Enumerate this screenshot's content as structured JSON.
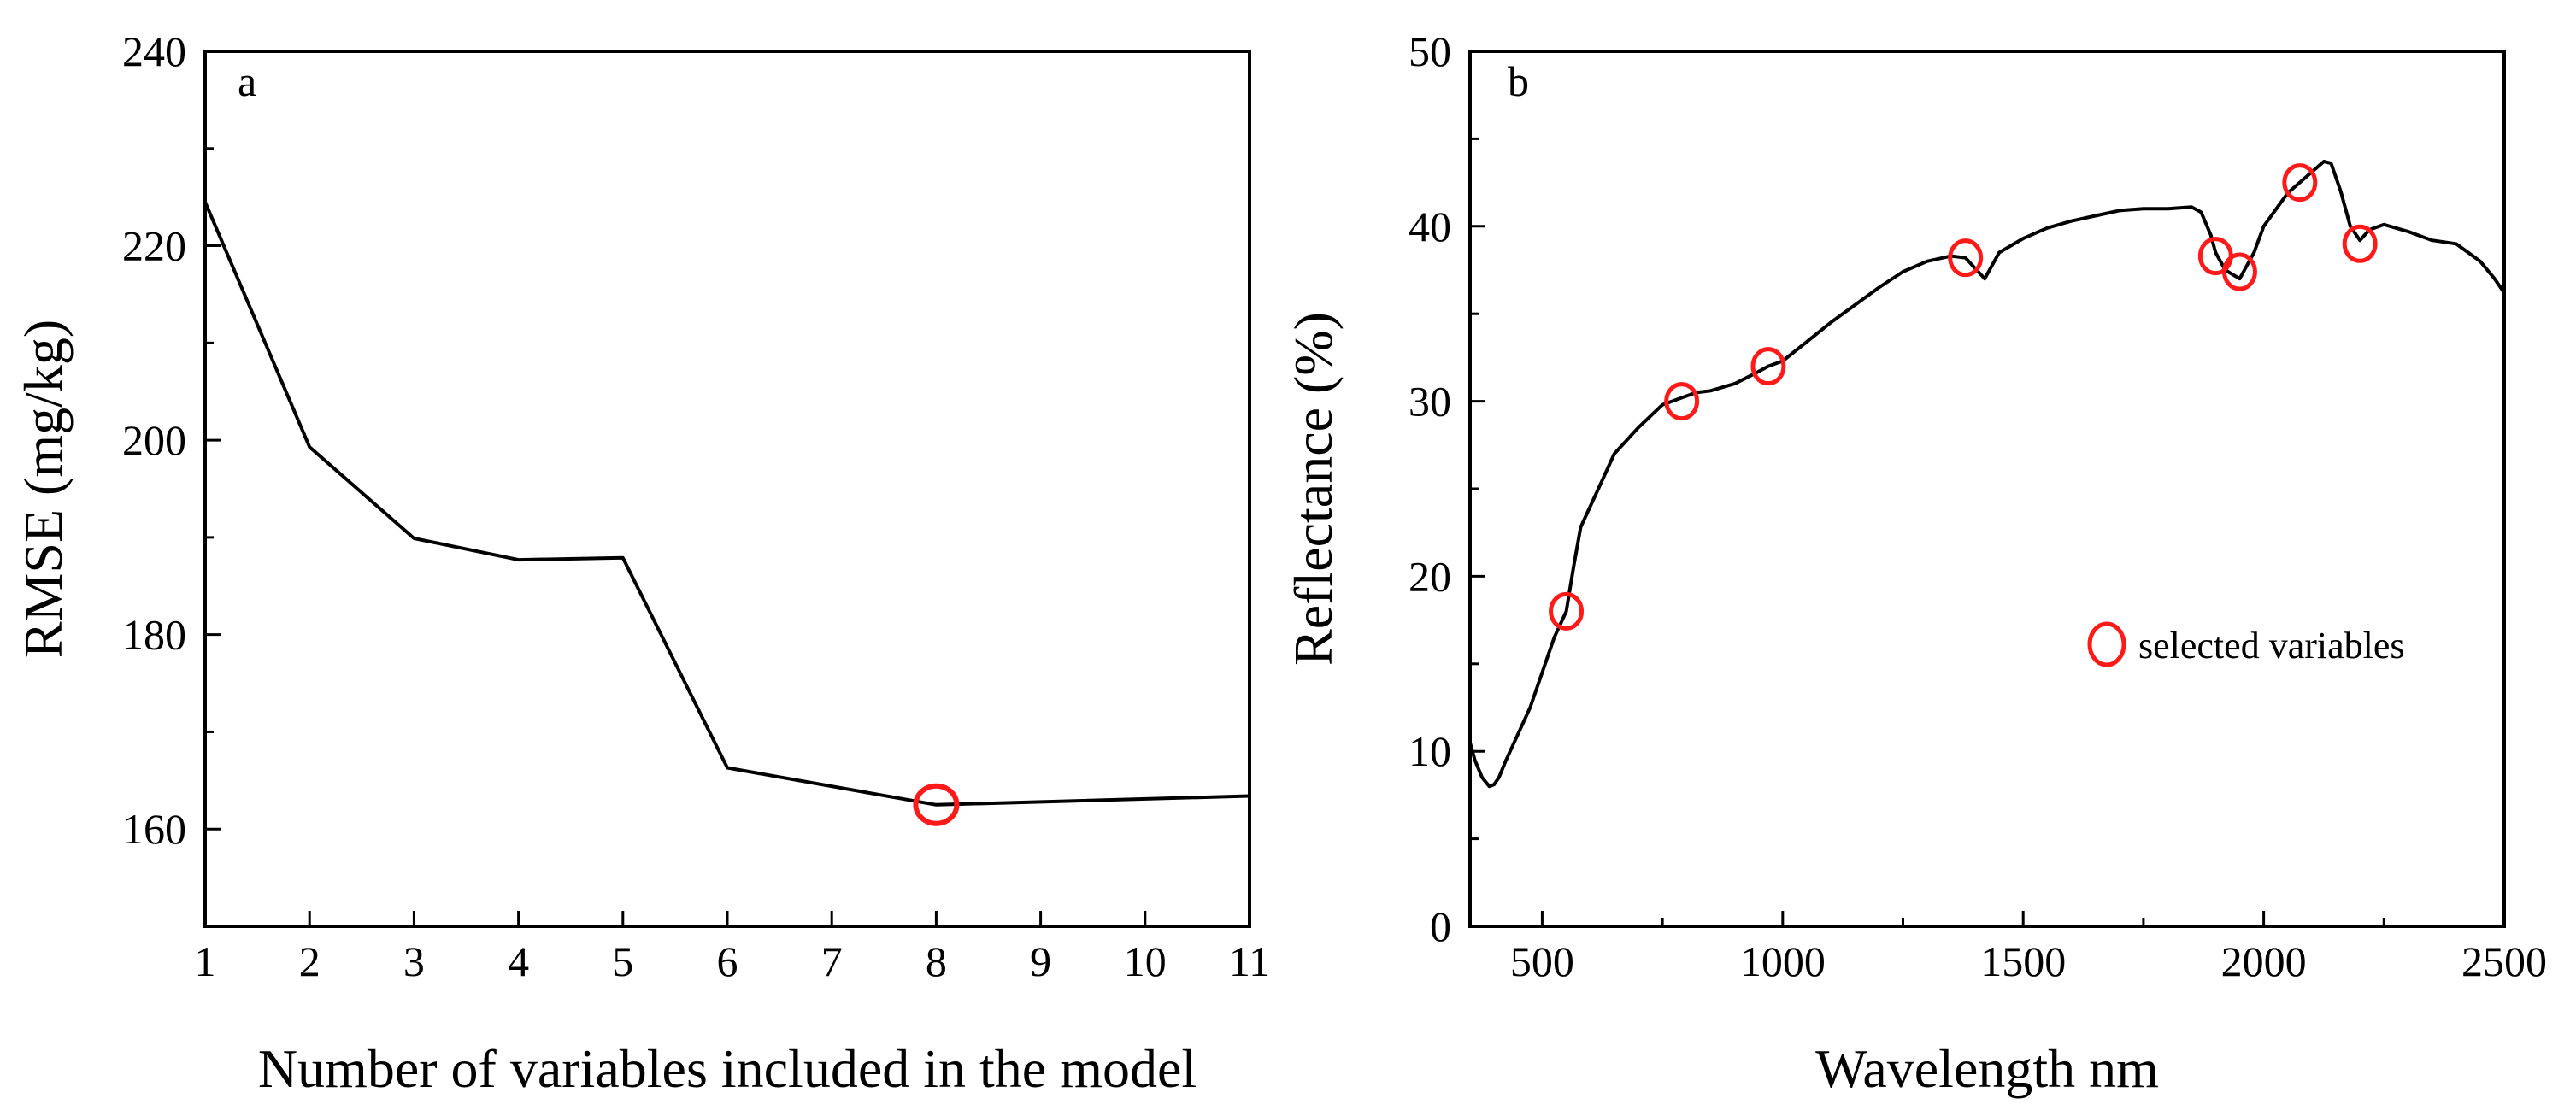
{
  "chart_data": [
    {
      "panel": "a",
      "type": "line",
      "xlabel": "Number of variables included in the model",
      "ylabel": "RMSE (mg/kg)",
      "xlim": [
        1,
        11
      ],
      "ylim": [
        150,
        240
      ],
      "xticks": [
        1,
        2,
        3,
        4,
        5,
        6,
        7,
        8,
        9,
        10,
        11
      ],
      "yticks": [
        160,
        180,
        200,
        220,
        240
      ],
      "series": [
        {
          "name": "RMSE",
          "x": [
            1,
            2,
            3,
            4,
            5,
            6,
            8,
            11
          ],
          "y": [
            224.5,
            199.3,
            189.9,
            187.7,
            187.9,
            166.3,
            162.5,
            163.4
          ]
        }
      ],
      "highlight": {
        "x": 8,
        "y": 162.5
      }
    },
    {
      "panel": "b",
      "type": "line",
      "xlabel": "Wavelength nm",
      "ylabel": "Reflectance (%)",
      "xlim": [
        350,
        2500
      ],
      "ylim": [
        0,
        50
      ],
      "xticks": [
        500,
        1000,
        1500,
        2000,
        2500
      ],
      "yticks": [
        0,
        10,
        20,
        30,
        40,
        50
      ],
      "series": [
        {
          "name": "Reflectance spectrum",
          "x": [
            350,
            360,
            375,
            390,
            400,
            410,
            425,
            450,
            475,
            500,
            525,
            550,
            565,
            580,
            600,
            625,
            650,
            700,
            750,
            790,
            820,
            850,
            900,
            950,
            970,
            1000,
            1050,
            1100,
            1150,
            1200,
            1250,
            1300,
            1350,
            1380,
            1400,
            1420,
            1450,
            1500,
            1550,
            1600,
            1650,
            1700,
            1750,
            1800,
            1850,
            1870,
            1890,
            1900,
            1920,
            1950,
            1980,
            2000,
            2050,
            2075,
            2100,
            2125,
            2140,
            2160,
            2180,
            2200,
            2220,
            2250,
            2300,
            2350,
            2400,
            2450,
            2480,
            2500
          ],
          "y": [
            10.5,
            9.5,
            8.5,
            8.0,
            8.1,
            8.5,
            9.5,
            11.0,
            12.5,
            14.5,
            16.5,
            18.0,
            20.5,
            22.8,
            24.0,
            25.5,
            27.0,
            28.5,
            29.8,
            30.2,
            30.5,
            30.6,
            31.0,
            31.7,
            32.0,
            32.3,
            33.4,
            34.5,
            35.5,
            36.5,
            37.4,
            38.0,
            38.3,
            38.2,
            37.6,
            37.0,
            38.5,
            39.3,
            39.9,
            40.3,
            40.6,
            40.9,
            41.0,
            41.0,
            41.1,
            40.8,
            39.5,
            38.5,
            37.5,
            37.0,
            38.5,
            40.0,
            41.9,
            42.5,
            43.1,
            43.7,
            43.6,
            42.0,
            40.0,
            39.2,
            39.8,
            40.1,
            39.7,
            39.2,
            39.0,
            38.0,
            37.0,
            36.2
          ]
        }
      ],
      "selected_points": {
        "x": [
          550,
          790,
          970,
          1380,
          1900,
          1950,
          2075,
          2200
        ],
        "y": [
          18.0,
          30.0,
          32.0,
          38.2,
          38.3,
          37.4,
          42.5,
          39.0
        ]
      },
      "legend": {
        "label": "selected variables",
        "placement": "center-right"
      }
    }
  ],
  "panels": {
    "a": {
      "label": "a"
    },
    "b": {
      "label": "b"
    }
  },
  "colors": {
    "line": "#000000",
    "marker": "#ff1a1a",
    "axis": "#000000"
  }
}
